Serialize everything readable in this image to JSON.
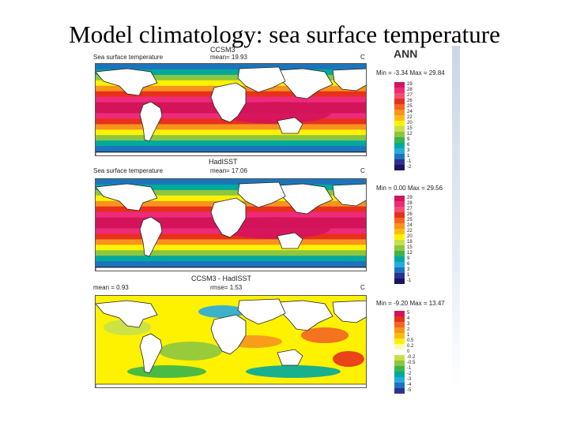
{
  "slide": {
    "title": "Model climatology: sea surface temperature"
  },
  "season_label": "ANN",
  "colors": {
    "land": "#ffffff",
    "coast": "#222222",
    "panel_border": "#555555"
  },
  "chart_data": [
    {
      "type": "heatmap",
      "title": "CCSM3",
      "subtitle": "Sea surface temperature",
      "stat_label": "mean=",
      "stat_value": "19.93",
      "right_label": "C",
      "min_label": "Min = -3.34",
      "max_label": "Max = 29.84",
      "levels": [
        "29",
        "28",
        "27",
        "26",
        "25",
        "24",
        "22",
        "20",
        "15",
        "12",
        "9",
        "6",
        "3",
        "1",
        "-1",
        "-2"
      ],
      "colors": [
        "#d4145a",
        "#ee2a7b",
        "#f0506e",
        "#e8301c",
        "#f26522",
        "#f7941d",
        "#fdb913",
        "#fff200",
        "#c8e04c",
        "#8dc63f",
        "#39b54a",
        "#00a99d",
        "#27aae1",
        "#1c75bc",
        "#2e3192",
        "#1b1464"
      ]
    },
    {
      "type": "heatmap",
      "title": "HadISST",
      "subtitle": "Sea surface temperature",
      "stat_label": "mean=",
      "stat_value": "17.06",
      "right_label": "C",
      "min_label": "Min = 0.00",
      "max_label": "Max = 29.56",
      "levels": [
        "29",
        "28",
        "27",
        "26",
        "25",
        "24",
        "22",
        "20",
        "18",
        "15",
        "12",
        "9",
        "6",
        "3",
        "1",
        "-1"
      ],
      "colors": [
        "#d4145a",
        "#ee2a7b",
        "#f0506e",
        "#e8301c",
        "#f26522",
        "#f7941d",
        "#fdb913",
        "#fff200",
        "#c8e04c",
        "#8dc63f",
        "#39b54a",
        "#00a99d",
        "#27aae1",
        "#1c75bc",
        "#2e3192",
        "#1b1464"
      ]
    },
    {
      "type": "heatmap",
      "title": "CCSM3 - HadISST",
      "subtitle": "",
      "stat_label": "mean =",
      "stat_value": "0.93",
      "rmse_label": "rmse=",
      "rmse_value": "1.53",
      "right_label": "C",
      "min_label": "Min = -9.20",
      "max_label": "Max = 13.47",
      "levels": [
        "5",
        "4",
        "3",
        "2",
        "1",
        "0.5",
        "0.2",
        "0",
        "-0.2",
        "-0.5",
        "-1",
        "-2",
        "-3",
        "-4",
        "-5"
      ],
      "colors": [
        "#d4145a",
        "#e8301c",
        "#f26522",
        "#f7941d",
        "#fdb913",
        "#fff200",
        "#fff9ae",
        "#ffffff",
        "#c8e04c",
        "#8dc63f",
        "#39b54a",
        "#00a99d",
        "#27aae1",
        "#1c75bc",
        "#2e3192"
      ]
    }
  ]
}
